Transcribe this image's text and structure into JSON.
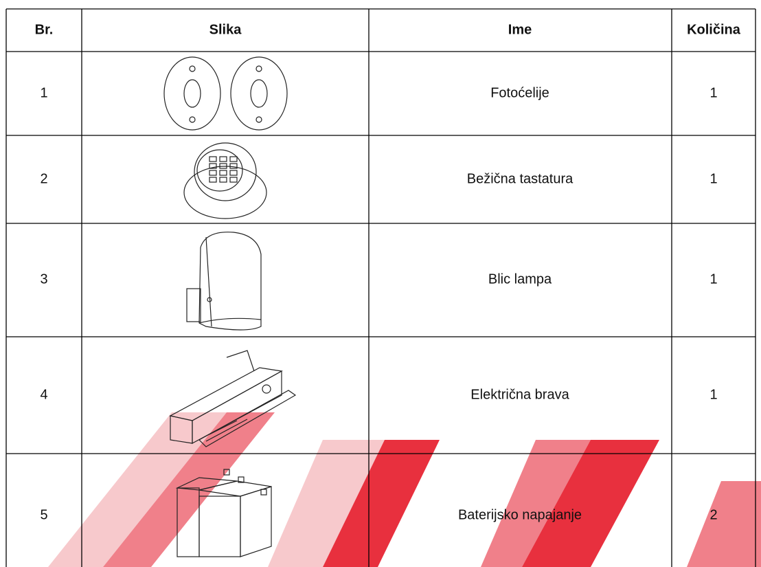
{
  "table": {
    "header": [
      "Br.",
      "Slika",
      "Ime",
      "Količina"
    ],
    "rows": [
      [
        "1",
        "Fotoćelije",
        "1"
      ],
      [
        "2",
        "Bežična tastatura",
        "1"
      ],
      [
        "3",
        "Blic lampa",
        "1"
      ],
      [
        "4",
        "Električna brava",
        "1"
      ],
      [
        "5",
        "Baterijsko napajanje",
        "2"
      ]
    ]
  }
}
